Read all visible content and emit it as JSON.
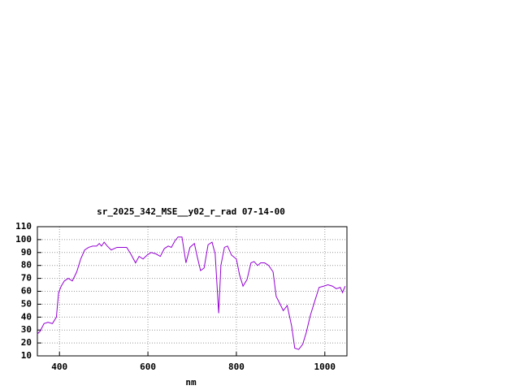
{
  "chart_data": {
    "type": "line",
    "title": "sr_2025_342_MSE__y02_r_rad 07-14-00",
    "x_label": "nm",
    "x": [
      350,
      356,
      365,
      374,
      384,
      393,
      398,
      404,
      411,
      420,
      429,
      439,
      448,
      457,
      466,
      475,
      484,
      490,
      495,
      501,
      508,
      517,
      530,
      539,
      552,
      561,
      572,
      580,
      589,
      598,
      607,
      618,
      628,
      637,
      646,
      653,
      661,
      668,
      677,
      686,
      695,
      705,
      712,
      719,
      727,
      736,
      745,
      752,
      760,
      765,
      773,
      780,
      789,
      800,
      807,
      815,
      824,
      833,
      840,
      848,
      855,
      864,
      873,
      883,
      890,
      899,
      906,
      915,
      925,
      932,
      941,
      950,
      958,
      967,
      976,
      987,
      998,
      1007,
      1017,
      1026,
      1035,
      1040,
      1046
    ],
    "series": [
      {
        "color": "#9400d3",
        "values": [
          27,
          29,
          35,
          36,
          35,
          40,
          59,
          64,
          68,
          70,
          68,
          75,
          85,
          92,
          94,
          95,
          95,
          97,
          95,
          98,
          95,
          92,
          94,
          94,
          94,
          89,
          82,
          87,
          85,
          88,
          90,
          89,
          87,
          93,
          95,
          94,
          99,
          102,
          102,
          82,
          94,
          97,
          86,
          76,
          78,
          96,
          98,
          89,
          43,
          80,
          94,
          95,
          88,
          85,
          73,
          64,
          69,
          82,
          83,
          80,
          82,
          82,
          80,
          75,
          56,
          50,
          45,
          49,
          33,
          16,
          15,
          19,
          28,
          41,
          51,
          63,
          64,
          65,
          64,
          62,
          63,
          59,
          64
        ]
      }
    ],
    "xlim": [
      350,
      1050
    ],
    "ylim": [
      10,
      110
    ],
    "xticks": [
      400,
      600,
      800,
      1000
    ],
    "yticks": [
      10,
      20,
      30,
      40,
      50,
      60,
      70,
      80,
      90,
      100,
      110
    ],
    "grid": true
  }
}
